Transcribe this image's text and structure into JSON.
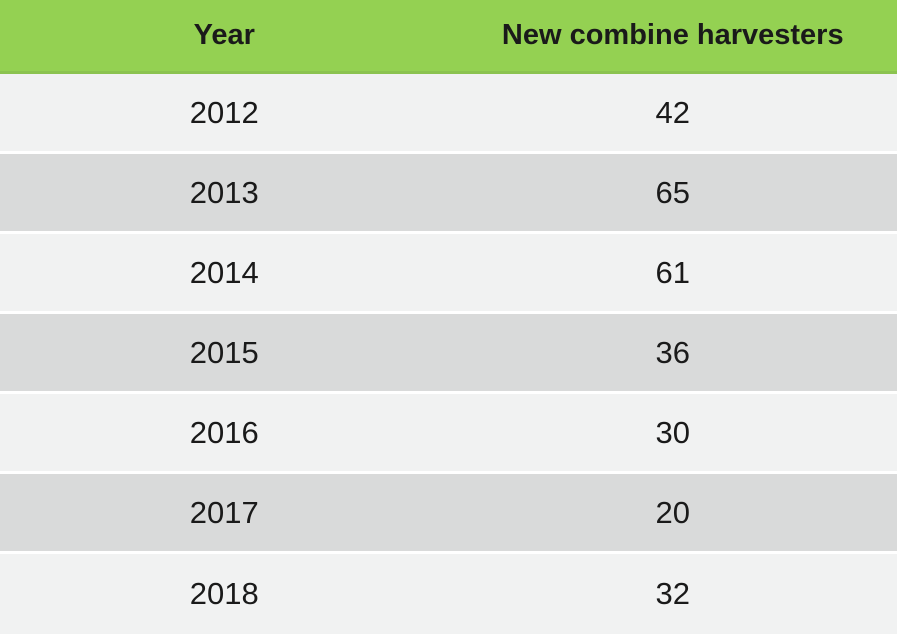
{
  "chart_data": {
    "type": "table",
    "title": "",
    "columns": [
      "Year",
      "New combine harvesters"
    ],
    "categories": [
      "2012",
      "2013",
      "2014",
      "2015",
      "2016",
      "2017",
      "2018"
    ],
    "values": [
      42,
      65,
      61,
      36,
      30,
      20,
      32
    ]
  },
  "table": {
    "headers": {
      "year": "Year",
      "value": "New combine harvesters"
    },
    "rows": [
      {
        "year": "2012",
        "value": "42"
      },
      {
        "year": "2013",
        "value": "65"
      },
      {
        "year": "2014",
        "value": "61"
      },
      {
        "year": "2015",
        "value": "36"
      },
      {
        "year": "2016",
        "value": "30"
      },
      {
        "year": "2017",
        "value": "20"
      },
      {
        "year": "2018",
        "value": "32"
      }
    ]
  },
  "colors": {
    "header_bg": "#94D152",
    "header_border": "#8BC350",
    "row_light": "#F1F2F2",
    "row_dark": "#D9DADA",
    "row_separator": "#FFFFFF",
    "text": "#1A1A1A"
  }
}
